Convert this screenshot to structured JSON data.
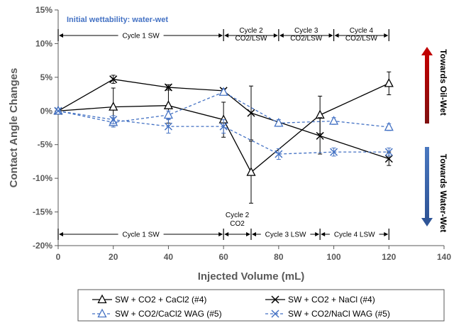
{
  "chart_data": {
    "type": "line",
    "xlabel": "Injected Volume (mL)",
    "ylabel": "Contact Angle Changes",
    "xlim": [
      0,
      140
    ],
    "ylim": [
      -0.2,
      0.15
    ],
    "x_ticks": [
      0,
      20,
      40,
      60,
      80,
      100,
      120,
      140
    ],
    "y_ticks": [
      -0.2,
      -0.15,
      -0.1,
      -0.05,
      0,
      0.05,
      0.1,
      0.15
    ],
    "x_tick_labels": [
      "0",
      "20",
      "40",
      "60",
      "80",
      "100",
      "120",
      "140"
    ],
    "y_tick_labels": [
      "-20%",
      "-15%",
      "-10%",
      "-5%",
      "0%",
      "5%",
      "10%",
      "15%"
    ],
    "grid": false,
    "legend_position": "bottom",
    "series": [
      {
        "name": "SW + CO2 + CaCl2 (#4)",
        "color": "#000000",
        "dash": "solid",
        "marker": "triangle",
        "x": [
          0,
          20,
          40,
          60,
          70,
          95,
          120
        ],
        "y": [
          0,
          0.006,
          0.008,
          -0.013,
          -0.091,
          -0.006,
          0.041
        ],
        "err": [
          0,
          0.028,
          0.026,
          0.026,
          0.046,
          0.028,
          0.017
        ]
      },
      {
        "name": "SW + CO2 + NaCl (#4)",
        "color": "#000000",
        "dash": "solid",
        "marker": "x",
        "x": [
          0,
          20,
          40,
          60,
          70,
          95,
          120
        ],
        "y": [
          0,
          0.047,
          0.035,
          0.03,
          -0.003,
          -0.037,
          -0.071
        ],
        "err": [
          0,
          0.006,
          0.004,
          0.003,
          0.04,
          0.027,
          0.01
        ]
      },
      {
        "name": "SW + CO2/CaCl2 WAG (#5)",
        "color": "#4472C4",
        "dash": "dashed",
        "marker": "triangle",
        "x": [
          0,
          20,
          40,
          60,
          80,
          100,
          120
        ],
        "y": [
          0,
          -0.017,
          -0.006,
          0.028,
          -0.018,
          -0.015,
          -0.024
        ],
        "err": [
          0,
          0.007,
          0.006,
          0.003,
          0.005,
          0.005,
          0.005
        ]
      },
      {
        "name": "SW + CO2/NaCl WAG (#5)",
        "color": "#4472C4",
        "dash": "dashed",
        "marker": "x",
        "x": [
          0,
          20,
          40,
          60,
          80,
          100,
          120
        ],
        "y": [
          0,
          -0.013,
          -0.023,
          -0.023,
          -0.064,
          -0.061,
          -0.061
        ],
        "err": [
          0,
          0.006,
          0.01,
          0.01,
          0.008,
          0.006,
          0.006
        ]
      }
    ]
  },
  "annotations": {
    "wettability_note": "Initial wettability: water-wet",
    "towards_oil_wet": "Towards Oil-Wet",
    "towards_water_wet": "Towards Water-Wet",
    "top_cycles": [
      {
        "lines": [
          "Cycle 1 SW"
        ],
        "x0": 0,
        "x1": 60
      },
      {
        "lines": [
          "Cycle 2",
          "CO2/LSW"
        ],
        "x0": 60,
        "x1": 80
      },
      {
        "lines": [
          "Cycle 3",
          "CO2/LSW"
        ],
        "x0": 80,
        "x1": 100
      },
      {
        "lines": [
          "Cycle 4",
          "CO2/LSW"
        ],
        "x0": 100,
        "x1": 120
      }
    ],
    "bottom_cycles": [
      {
        "lines": [
          "Cycle 1 SW"
        ],
        "x0": 0,
        "x1": 60
      },
      {
        "lines": [
          "Cycle 2",
          "CO2"
        ],
        "x0": 60,
        "x1": 70
      },
      {
        "lines": [
          "Cycle 3 LSW"
        ],
        "x0": 70,
        "x1": 95
      },
      {
        "lines": [
          "Cycle 4 LSW"
        ],
        "x0": 95,
        "x1": 120
      }
    ]
  },
  "colors": {
    "axis": "#595959",
    "note": "#4472C4",
    "arrow_up": "#C00000",
    "arrow_down": "#2F5597"
  }
}
